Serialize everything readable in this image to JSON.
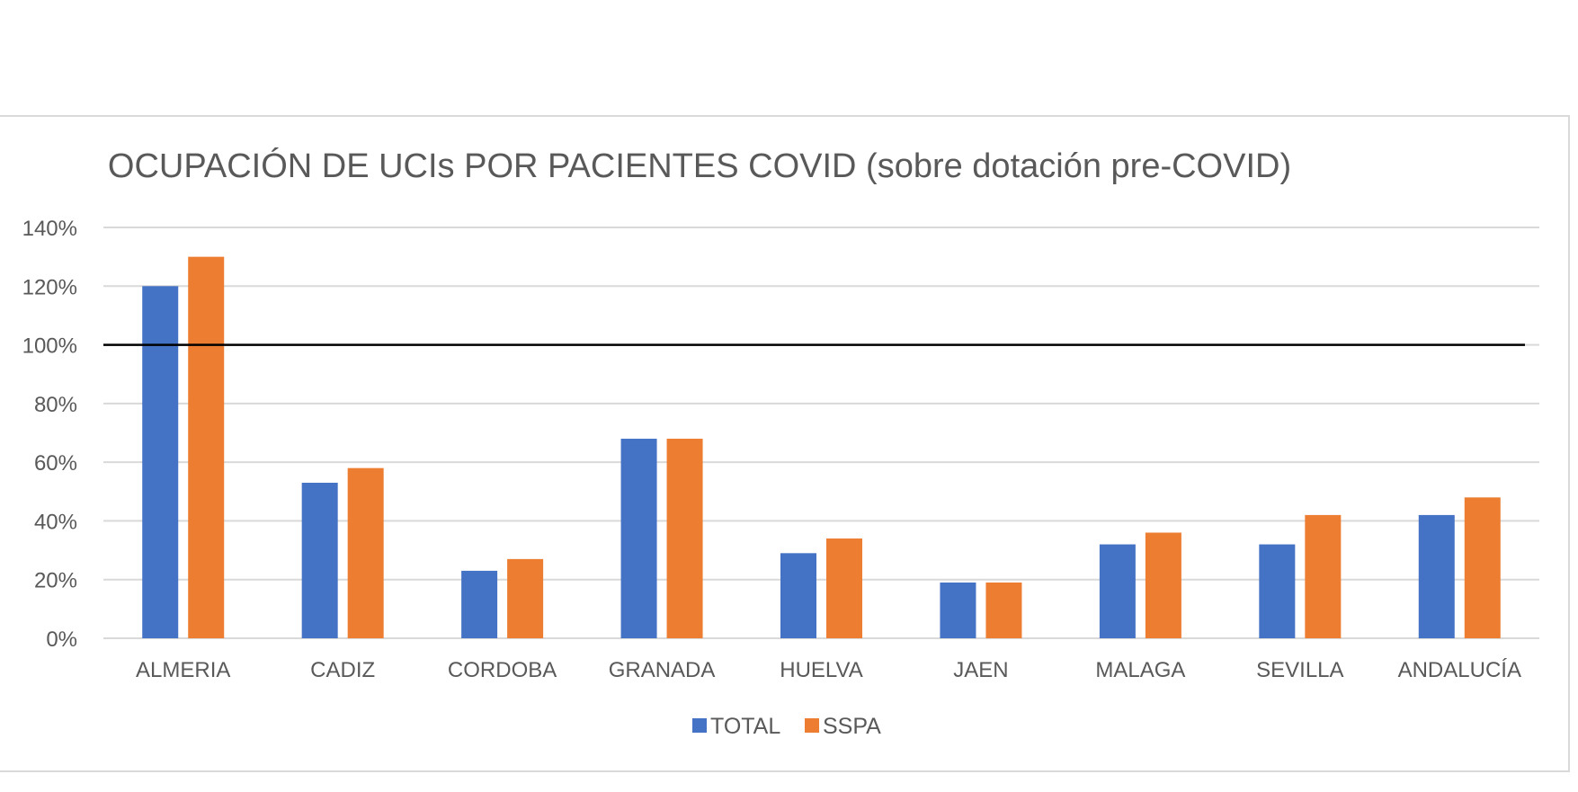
{
  "chart_data": {
    "type": "bar",
    "title": "OCUPACIÓN DE UCIs POR PACIENTES COVID (sobre dotación pre-COVID)",
    "xlabel": "",
    "ylabel": "",
    "categories": [
      "ALMERIA",
      "CADIZ",
      "CORDOBA",
      "GRANADA",
      "HUELVA",
      "JAEN",
      "MALAGA",
      "SEVILLA",
      "ANDALUCÍA"
    ],
    "series": [
      {
        "name": "TOTAL",
        "color": "#4472c4",
        "values": [
          1.2,
          0.53,
          0.23,
          0.68,
          0.29,
          0.19,
          0.32,
          0.32,
          0.42
        ]
      },
      {
        "name": "SSPA",
        "color": "#ed7d31",
        "values": [
          1.3,
          0.58,
          0.27,
          0.68,
          0.34,
          0.19,
          0.36,
          0.42,
          0.48
        ]
      }
    ],
    "ylim": [
      0,
      1.4
    ],
    "yticks": [
      "0%",
      "20%",
      "40%",
      "60%",
      "80%",
      "100%",
      "120%",
      "140%"
    ],
    "ytick_values": [
      0,
      0.2,
      0.4,
      0.6,
      0.8,
      1.0,
      1.2,
      1.4
    ],
    "reference_line": 1.0,
    "grid": true,
    "legend_position": "bottom"
  }
}
